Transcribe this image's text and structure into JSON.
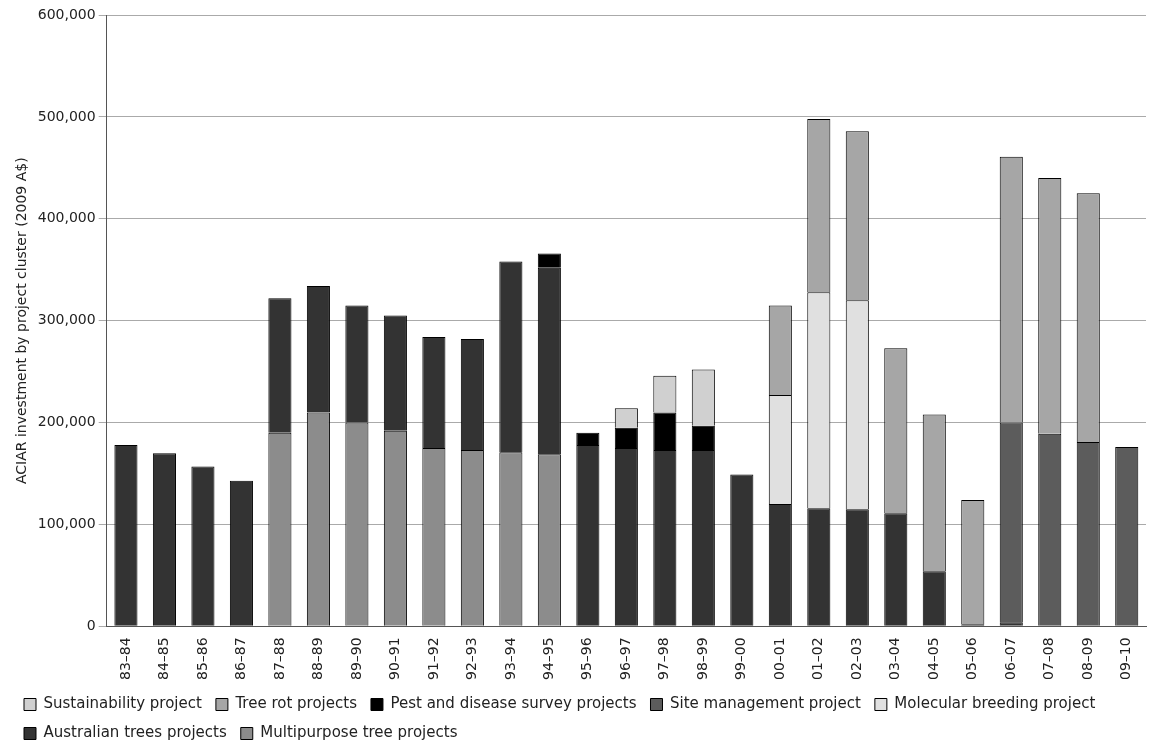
{
  "chart_data": {
    "type": "bar",
    "stacked": true,
    "ylabel": "ACIAR investment by project cluster (2009 A$)",
    "categories": [
      "83–84",
      "84–85",
      "85–86",
      "86–87",
      "87–88",
      "88–89",
      "89–90",
      "90–91",
      "91–92",
      "92–93",
      "93–94",
      "94–95",
      "95–96",
      "96–97",
      "97–98",
      "98–99",
      "99–00",
      "00–01",
      "01–02",
      "02–03",
      "03–04",
      "04–05",
      "05–06",
      "06–07",
      "07–08",
      "08–09",
      "09–10"
    ],
    "series": [
      {
        "name": "Multipurpose tree projects",
        "color": "#8c8c8c",
        "values": [
          null,
          null,
          null,
          null,
          190000,
          210000,
          200000,
          192000,
          175000,
          173000,
          171000,
          169000,
          null,
          null,
          null,
          null,
          null,
          null,
          null,
          null,
          null,
          null,
          null,
          null,
          null,
          null,
          null
        ]
      },
      {
        "name": "Australian trees projects",
        "color": "#333333",
        "values": [
          178000,
          170000,
          157000,
          143000,
          132000,
          124000,
          115000,
          113000,
          109000,
          109000,
          187000,
          183000,
          178000,
          175000,
          173000,
          173000,
          149000,
          120000,
          116000,
          115000,
          111000,
          54000,
          2000,
          4000,
          null,
          null,
          null
        ]
      },
      {
        "name": "Molecular breeding project",
        "color": "#e0e0e0",
        "values": [
          null,
          null,
          null,
          null,
          null,
          null,
          null,
          null,
          null,
          null,
          null,
          null,
          null,
          null,
          null,
          null,
          null,
          107000,
          212000,
          205000,
          null,
          null,
          null,
          null,
          null,
          null,
          null
        ]
      },
      {
        "name": "Site management project",
        "color": "#5c5c5c",
        "values": [
          null,
          null,
          null,
          null,
          null,
          null,
          null,
          null,
          null,
          null,
          null,
          null,
          null,
          null,
          null,
          null,
          null,
          null,
          null,
          null,
          null,
          null,
          null,
          196000,
          189000,
          181000,
          176000
        ]
      },
      {
        "name": "Pest and disease survey projects",
        "color": "#000000",
        "values": [
          null,
          null,
          null,
          null,
          null,
          null,
          null,
          null,
          null,
          null,
          null,
          14000,
          12000,
          20000,
          37000,
          24000,
          null,
          null,
          null,
          null,
          null,
          null,
          null,
          null,
          null,
          null,
          null
        ]
      },
      {
        "name": "Tree rot projects",
        "color": "#a6a6a6",
        "values": [
          null,
          null,
          null,
          null,
          null,
          null,
          null,
          null,
          null,
          null,
          null,
          null,
          null,
          null,
          null,
          null,
          null,
          88000,
          170000,
          166000,
          162000,
          154000,
          122000,
          261000,
          251000,
          244000,
          null
        ]
      },
      {
        "name": "Sustainability project",
        "color": "#d0d0d0",
        "values": [
          null,
          null,
          null,
          null,
          null,
          null,
          null,
          null,
          null,
          null,
          null,
          null,
          null,
          19000,
          36000,
          55000,
          null,
          null,
          null,
          null,
          null,
          null,
          null,
          null,
          null,
          null,
          null
        ]
      }
    ],
    "ylim": [
      0,
      600000
    ],
    "yticks": [
      0,
      {
        "value": 100000,
        "label": "100,000"
      },
      {
        "value": 200000,
        "label": "200,000"
      },
      {
        "value": 300000,
        "label": "300,000"
      },
      {
        "value": 400000,
        "label": "400,000"
      },
      {
        "value": 500000,
        "label": "500,000"
      },
      {
        "value": 600000,
        "label": "600,000"
      }
    ],
    "grid": "y",
    "legend": "bottom"
  }
}
